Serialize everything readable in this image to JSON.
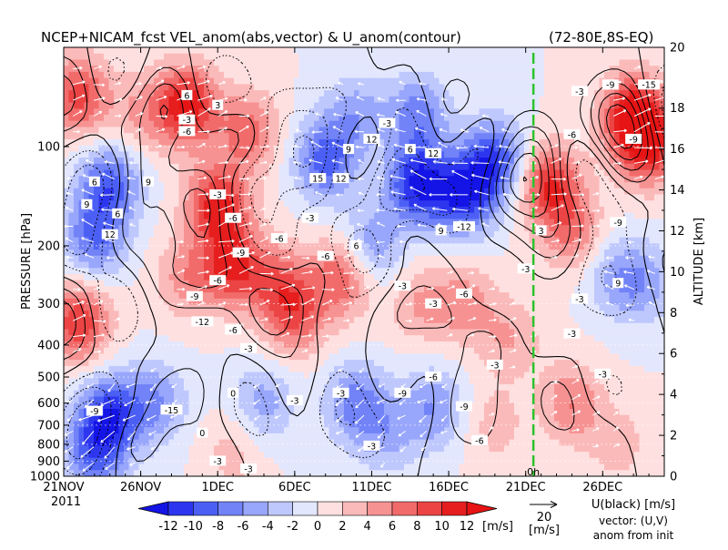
{
  "chart_data": {
    "type": "heatmap",
    "title": "NCEP+NICAM_fcst VEL_anom(abs,vector) & U_anom(contour)",
    "region": "(72-80E,8S-EQ)",
    "ylabel": "PRESSURE [hPa]",
    "ylabel_right": "ALTITUDE [km]",
    "x_ticks": [
      "21NOV",
      "26NOV",
      "1DEC",
      "6DEC",
      "11DEC",
      "16DEC",
      "21DEC",
      "26DEC"
    ],
    "x_year": "2011",
    "x_range_days": [
      0,
      39
    ],
    "y_ticks": [
      100,
      200,
      300,
      400,
      500,
      600,
      700,
      800,
      900,
      1000
    ],
    "y_range_hpa": [
      1000,
      50
    ],
    "right_ticks": [
      0,
      2,
      4,
      6,
      8,
      10,
      12,
      14,
      16,
      18,
      20
    ],
    "init_marker_label": "0h",
    "init_marker_day": 30.5,
    "colorbar": {
      "levels": [
        -12,
        -10,
        -8,
        -6,
        -4,
        -2,
        0,
        2,
        4,
        6,
        8,
        10,
        12
      ],
      "labels": [
        "-12",
        "-10",
        "-8",
        "-6",
        "-4",
        "-2",
        "0",
        "2",
        "4",
        "6",
        "8",
        "10",
        "12"
      ],
      "colors": [
        "#1414e6",
        "#2d36ee",
        "#4c5ff5",
        "#7283f8",
        "#98a6fb",
        "#bfc8fd",
        "#e3e7fe",
        "#ffe0e0",
        "#fbbaba",
        "#f79292",
        "#f26b6b",
        "#ec4444",
        "#e61e1e",
        "#e61414"
      ],
      "unit": "[m/s]"
    },
    "vector_key": {
      "value": "20",
      "unit": "[m/s]"
    },
    "legend_text": [
      "U(black) [m/s]",
      "vector: (U,V)",
      "anom from init"
    ],
    "field_blobs": [
      {
        "t": 3,
        "p": 130,
        "v": -9
      },
      {
        "t": 2,
        "p": 190,
        "v": -8
      },
      {
        "t": 1,
        "p": 340,
        "v": 10
      },
      {
        "t": 1,
        "p": 70,
        "v": 9
      },
      {
        "t": 5,
        "p": 80,
        "v": 4
      },
      {
        "t": 8,
        "p": 75,
        "v": 12
      },
      {
        "t": 8,
        "p": 250,
        "v": 5
      },
      {
        "t": 10,
        "p": 150,
        "v": 11
      },
      {
        "t": 11,
        "p": 230,
        "v": 10
      },
      {
        "t": 12,
        "p": 90,
        "v": 7
      },
      {
        "t": 14,
        "p": 260,
        "v": 6
      },
      {
        "t": 18,
        "p": 250,
        "v": 8
      },
      {
        "t": 15,
        "p": 330,
        "v": 7
      },
      {
        "t": 17,
        "p": 110,
        "v": -9
      },
      {
        "t": 20,
        "p": 200,
        "v": -6
      },
      {
        "t": 19,
        "p": 80,
        "v": -5
      },
      {
        "t": 23,
        "p": 130,
        "v": -12
      },
      {
        "t": 26,
        "p": 140,
        "v": -11
      },
      {
        "t": 28,
        "p": 110,
        "v": -10
      },
      {
        "t": 23,
        "p": 80,
        "v": -7
      },
      {
        "t": 23,
        "p": 300,
        "v": 4
      },
      {
        "t": 26,
        "p": 300,
        "v": 5
      },
      {
        "t": 3,
        "p": 650,
        "v": -10
      },
      {
        "t": 2,
        "p": 850,
        "v": -8
      },
      {
        "t": 6,
        "p": 600,
        "v": -6
      },
      {
        "t": 13,
        "p": 600,
        "v": -5
      },
      {
        "t": 19,
        "p": 600,
        "v": -7
      },
      {
        "t": 24,
        "p": 620,
        "v": -6
      },
      {
        "t": 21,
        "p": 750,
        "v": -4
      },
      {
        "t": 11,
        "p": 850,
        "v": 3
      },
      {
        "t": 28,
        "p": 700,
        "v": 3
      },
      {
        "t": 29,
        "p": 380,
        "v": 4
      },
      {
        "t": 31.5,
        "p": 130,
        "v": 10
      },
      {
        "t": 33,
        "p": 180,
        "v": 6
      },
      {
        "t": 37,
        "p": 80,
        "v": 12
      },
      {
        "t": 38,
        "p": 100,
        "v": 10
      },
      {
        "t": 36,
        "p": 250,
        "v": -5
      },
      {
        "t": 38,
        "p": 260,
        "v": -4
      },
      {
        "t": 33,
        "p": 600,
        "v": 6
      },
      {
        "t": 36,
        "p": 800,
        "v": 3
      }
    ],
    "contour_labels": [
      {
        "t": 2,
        "p": 128,
        "text": "6"
      },
      {
        "t": 1.5,
        "p": 150,
        "text": "9"
      },
      {
        "t": 3.5,
        "p": 160,
        "text": "6"
      },
      {
        "t": 3,
        "p": 185,
        "text": "12"
      },
      {
        "t": 5.5,
        "p": 128,
        "text": "9"
      },
      {
        "t": 8,
        "p": 70,
        "text": "6"
      },
      {
        "t": 10,
        "p": 75,
        "text": "3"
      },
      {
        "t": 8,
        "p": 83,
        "text": "-3"
      },
      {
        "t": 8,
        "p": 90,
        "text": "-6"
      },
      {
        "t": 10,
        "p": 140,
        "text": "-3"
      },
      {
        "t": 11,
        "p": 165,
        "text": "-6"
      },
      {
        "t": 11.5,
        "p": 210,
        "text": "-9"
      },
      {
        "t": 10,
        "p": 255,
        "text": "-6"
      },
      {
        "t": 8.5,
        "p": 285,
        "text": "-9"
      },
      {
        "t": 9,
        "p": 340,
        "text": "-12"
      },
      {
        "t": 11,
        "p": 360,
        "text": "-6"
      },
      {
        "t": 12,
        "p": 410,
        "text": "-3"
      },
      {
        "t": 14,
        "p": 190,
        "text": "-6"
      },
      {
        "t": 16,
        "p": 165,
        "text": "-3"
      },
      {
        "t": 17,
        "p": 215,
        "text": "-6"
      },
      {
        "t": 16.5,
        "p": 125,
        "text": "15"
      },
      {
        "t": 18,
        "p": 125,
        "text": "12"
      },
      {
        "t": 18.5,
        "p": 102,
        "text": "9"
      },
      {
        "t": 20,
        "p": 95,
        "text": "12"
      },
      {
        "t": 22.5,
        "p": 102,
        "text": "6"
      },
      {
        "t": 21,
        "p": 85,
        "text": "-3"
      },
      {
        "t": 26,
        "p": 175,
        "text": "-12"
      },
      {
        "t": 24,
        "p": 105,
        "text": "12"
      },
      {
        "t": 24.5,
        "p": 180,
        "text": "9"
      },
      {
        "t": 19,
        "p": 200,
        "text": "6"
      },
      {
        "t": 22,
        "p": 265,
        "text": "-3"
      },
      {
        "t": 26,
        "p": 280,
        "text": "-6"
      },
      {
        "t": 24,
        "p": 300,
        "text": "-3"
      },
      {
        "t": 28,
        "p": 460,
        "text": "-3"
      },
      {
        "t": 24,
        "p": 500,
        "text": "-6"
      },
      {
        "t": 22,
        "p": 560,
        "text": "-9"
      },
      {
        "t": 18,
        "p": 560,
        "text": "-3"
      },
      {
        "t": 26,
        "p": 615,
        "text": "-9"
      },
      {
        "t": 2,
        "p": 635,
        "text": "-9"
      },
      {
        "t": 7,
        "p": 630,
        "text": "-15"
      },
      {
        "t": 20,
        "p": 810,
        "text": "-3"
      },
      {
        "t": 27,
        "p": 780,
        "text": "-6"
      },
      {
        "t": 11,
        "p": 560,
        "text": "0"
      },
      {
        "t": 10,
        "p": 900,
        "text": "-3"
      },
      {
        "t": 15,
        "p": 590,
        "text": "-3"
      },
      {
        "t": 12,
        "p": 950,
        "text": "-3"
      },
      {
        "t": 9,
        "p": 740,
        "text": "0"
      },
      {
        "t": 33.5,
        "p": 68,
        "text": "-3"
      },
      {
        "t": 33,
        "p": 92,
        "text": "-6"
      },
      {
        "t": 35.5,
        "p": 65,
        "text": "-9"
      },
      {
        "t": 38,
        "p": 65,
        "text": "-15"
      },
      {
        "t": 37,
        "p": 95,
        "text": "-9"
      },
      {
        "t": 36,
        "p": 170,
        "text": "-9"
      },
      {
        "t": 33.5,
        "p": 290,
        "text": "-3"
      },
      {
        "t": 33,
        "p": 370,
        "text": "-3"
      },
      {
        "t": 35,
        "p": 490,
        "text": "-3"
      },
      {
        "t": 36,
        "p": 260,
        "text": "9"
      },
      {
        "t": 31,
        "p": 180,
        "text": "3"
      },
      {
        "t": 30,
        "p": 235,
        "text": "-3"
      }
    ]
  }
}
